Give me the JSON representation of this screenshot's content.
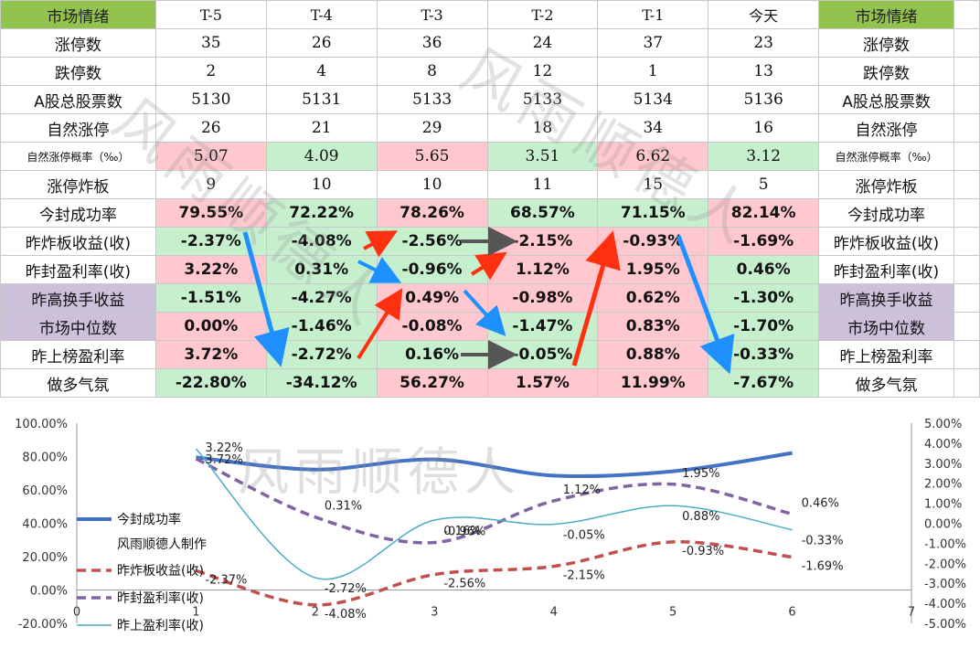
{
  "table": {
    "header": {
      "label_left": "市场情绪",
      "cols": [
        "T-5",
        "T-4",
        "T-3",
        "T-2",
        "T-1",
        "今天"
      ],
      "label_right": "市场情绪"
    },
    "rows": [
      {
        "label": "涨停数",
        "values": [
          "35",
          "26",
          "36",
          "24",
          "37",
          "23"
        ]
      },
      {
        "label": "跌停数",
        "values": [
          "2",
          "4",
          "8",
          "12",
          "1",
          "13"
        ]
      },
      {
        "label": "A股总股票数",
        "values": [
          "5130",
          "5131",
          "5133",
          "5133",
          "5134",
          "5136"
        ]
      },
      {
        "label": "自然涨停",
        "values": [
          "26",
          "21",
          "29",
          "18",
          "34",
          "16"
        ]
      },
      {
        "label": "自然涨停概率（‰）",
        "values": [
          "5.07",
          "4.09",
          "5.65",
          "3.51",
          "6.62",
          "3.12"
        ]
      },
      {
        "label": "涨停炸板",
        "values": [
          "9",
          "10",
          "10",
          "11",
          "15",
          "5"
        ]
      },
      {
        "label": "今封成功率",
        "values": [
          "79.55%",
          "72.22%",
          "78.26%",
          "68.57%",
          "71.15%",
          "82.14%"
        ]
      },
      {
        "label": "昨炸板收益(收)",
        "values": [
          "-2.37%",
          "-4.08%",
          "-2.56%",
          "-2.15%",
          "-0.93%",
          "-1.69%"
        ]
      },
      {
        "label": "昨封盈利率(收)",
        "values": [
          "3.22%",
          "0.31%",
          "-0.96%",
          "1.12%",
          "1.95%",
          "0.46%"
        ]
      },
      {
        "label": "昨高换手收益",
        "values": [
          "-1.51%",
          "-4.27%",
          "0.49%",
          "-0.98%",
          "0.62%",
          "-1.30%"
        ]
      },
      {
        "label": "市场中位数",
        "values": [
          "0.00%",
          "-1.46%",
          "-0.08%",
          "-1.47%",
          "0.83%",
          "-1.70%"
        ]
      },
      {
        "label": "昨上榜盈利率",
        "values": [
          "3.72%",
          "-2.72%",
          "0.16%",
          "-0.05%",
          "0.88%",
          "-0.33%"
        ]
      },
      {
        "label": "做多气氛",
        "values": [
          "-22.80%",
          "-34.12%",
          "56.27%",
          "1.57%",
          "11.99%",
          "-7.67%"
        ]
      }
    ]
  },
  "watermark": "风雨顺德人",
  "chart_data": {
    "type": "line",
    "x": [
      1,
      2,
      3,
      4,
      5,
      6
    ],
    "xlim": [
      0,
      7
    ],
    "xticks": [
      "0",
      "1",
      "2",
      "3",
      "4",
      "5",
      "6",
      "7"
    ],
    "ylim_left": [
      -20,
      100
    ],
    "yticks_left": [
      "100.00%",
      "80.00%",
      "60.00%",
      "40.00%",
      "20.00%",
      "0.00%",
      "-20.00%"
    ],
    "ylim_right": [
      -5,
      5
    ],
    "yticks_right": [
      "5.00%",
      "4.00%",
      "3.00%",
      "2.00%",
      "1.00%",
      "0.00%",
      "-1.00%",
      "-2.00%",
      "-3.00%",
      "-4.00%",
      "-5.00%"
    ],
    "series": [
      {
        "name": "今封成功率",
        "axis": "left",
        "color": "#4472c4",
        "values": [
          79.55,
          72.22,
          78.26,
          68.57,
          71.15,
          82.14
        ],
        "labels": []
      },
      {
        "name": "昨炸板收益(收)",
        "axis": "right",
        "color": "#c0504d",
        "values": [
          -2.37,
          -4.08,
          -2.56,
          -2.15,
          -0.93,
          -1.69
        ],
        "labels": [
          "-2.37%",
          "-4.08%",
          "-2.56%",
          "-2.15%",
          "-0.93%",
          "-1.69%"
        ]
      },
      {
        "name": "昨封盈利率(收)",
        "axis": "right",
        "color": "#8064a2",
        "values": [
          3.22,
          0.31,
          -0.96,
          1.12,
          1.95,
          0.46
        ],
        "labels": [
          "3.22%",
          "0.31%",
          "-0.96%",
          "1.12%",
          "1.95%",
          "0.46%"
        ]
      },
      {
        "name": "昨上盈利率(收)",
        "axis": "right",
        "color": "#4bacc6",
        "values": [
          3.72,
          -2.72,
          0.16,
          -0.05,
          0.88,
          -0.33
        ],
        "labels": [
          "3.72%",
          "-2.72%",
          "0.16%",
          "-0.05%",
          "0.88%",
          "-0.33%"
        ]
      }
    ],
    "legend_note": "风雨顺德人制作",
    "legend_position": "left"
  }
}
